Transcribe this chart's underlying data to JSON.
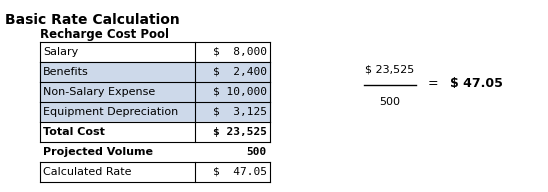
{
  "title": "Basic Rate Calculation",
  "subtitle": "Recharge Cost Pool",
  "table_rows": [
    {
      "label": "Salary",
      "value": "$  8,000",
      "bold": false,
      "bg": "#ffffff"
    },
    {
      "label": "Benefits",
      "value": "$  2,400",
      "bold": false,
      "bg": "#cdd9ea"
    },
    {
      "label": "Non-Salary Expense",
      "value": "$ 10,000",
      "bold": false,
      "bg": "#cdd9ea"
    },
    {
      "label": "Equipment Depreciation",
      "value": "$  3,125",
      "bold": false,
      "bg": "#cdd9ea"
    },
    {
      "label": "Total Cost",
      "value": "$ 23,525",
      "bold": true,
      "bg": "#ffffff"
    }
  ],
  "proj_volume_label": "Projected Volume",
  "proj_volume_value": "500",
  "calc_rate_label": "Calculated Rate",
  "calc_rate_value": "$  47.05",
  "fraction_numerator": "$ 23,525",
  "fraction_denominator": "500",
  "fraction_result": "$ 47.05",
  "bg_color": "#ffffff",
  "border_color": "#000000",
  "title_fontsize": 10,
  "body_fontsize": 8
}
